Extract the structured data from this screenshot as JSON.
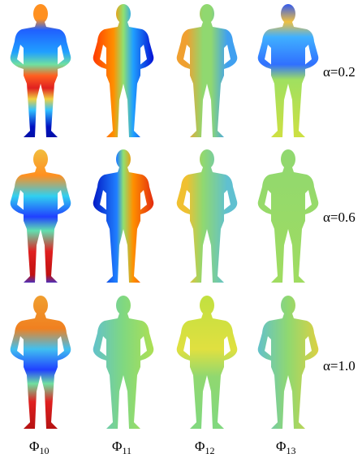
{
  "rows": [
    {
      "label": "α=0.2"
    },
    {
      "label": "α=0.6"
    },
    {
      "label": "α=1.0"
    }
  ],
  "columns": [
    {
      "symbol": "Φ",
      "index": "10"
    },
    {
      "symbol": "Φ",
      "index": "11"
    },
    {
      "symbol": "Φ",
      "index": "12"
    },
    {
      "symbol": "Φ",
      "index": "13"
    }
  ]
}
